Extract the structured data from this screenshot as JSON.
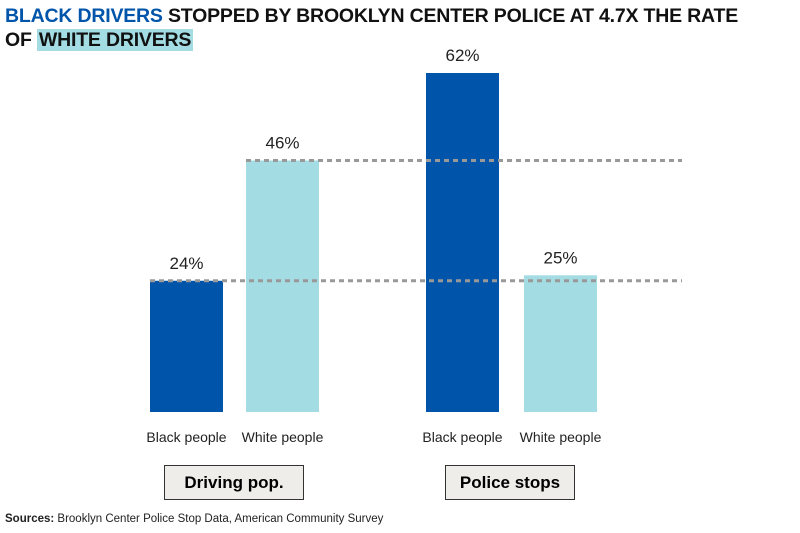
{
  "title": {
    "part1": "BLACK DRIVERS",
    "part2": " STOPPED BY BROOKLYN CENTER POLICE AT 4.7X THE RATE",
    "part3": "OF ",
    "part4": "WHITE DRIVERS"
  },
  "colors": {
    "black": "#0055aa",
    "white": "#a3dce3",
    "reference_line": "#999999"
  },
  "chart_data": {
    "type": "bar",
    "groups": [
      "Driving pop.",
      "Police stops"
    ],
    "categories": [
      "Black people",
      "White people"
    ],
    "values": [
      [
        24,
        46
      ],
      [
        62,
        25
      ]
    ],
    "labels": [
      [
        "24%",
        "46%"
      ],
      [
        "62%",
        "25%"
      ]
    ],
    "ylim": [
      0,
      62
    ],
    "reference_lines": [
      46,
      24
    ],
    "grid": false
  },
  "source": {
    "label": "Sources:",
    "text": " Brooklyn Center Police Stop Data, American Community Survey"
  }
}
